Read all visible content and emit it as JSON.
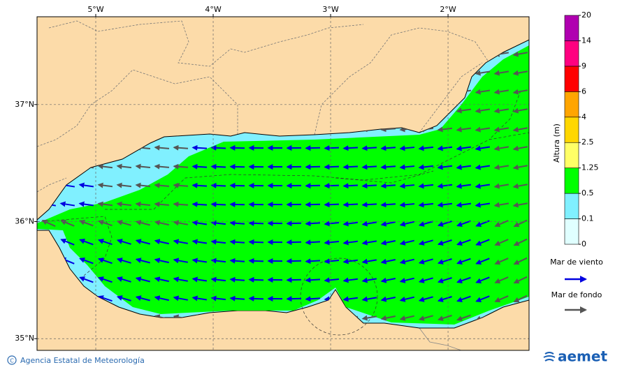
{
  "map": {
    "xlim": [
      -5.5,
      -1.31
    ],
    "ylim": [
      34.9,
      37.75
    ],
    "lon_ticks": [
      {
        "value": -5,
        "label": "5°W"
      },
      {
        "value": -4,
        "label": "4°W"
      },
      {
        "value": -3,
        "label": "3°W"
      },
      {
        "value": -2,
        "label": "2°W"
      }
    ],
    "lat_ticks": [
      {
        "value": 37,
        "label": "37°N"
      },
      {
        "value": 36,
        "label": "36°N"
      },
      {
        "value": 35,
        "label": "35°N"
      }
    ]
  },
  "colorbar": {
    "title": "Altura (m)",
    "levels": [
      0,
      0.1,
      0.5,
      1.25,
      2.5,
      4,
      6,
      9,
      14,
      20
    ],
    "colors": [
      "#e0ffff",
      "#80f0ff",
      "#00ff00",
      "#ffff66",
      "#ffd700",
      "#ffa500",
      "#ff0000",
      "#ff0080",
      "#b000b0"
    ]
  },
  "legend": [
    {
      "label": "Mar de viento",
      "color": "#0000e0"
    },
    {
      "label": "Mar de fondo",
      "color": "#555555"
    }
  ],
  "footer": {
    "credit": "Agencia Estatal de Meteorología",
    "logo": "aemet"
  }
}
